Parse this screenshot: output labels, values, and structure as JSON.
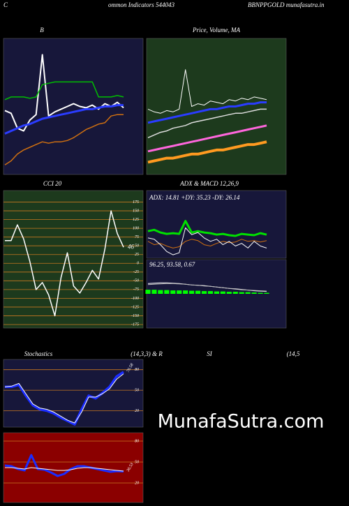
{
  "header": {
    "left": "C",
    "center": "ommon  Indicators 544043",
    "right": "BBNPPGOLD munafasutra.in"
  },
  "watermark": "MunafaSutra.com",
  "chart_data": [
    {
      "type": "line",
      "title": "B",
      "background": "#17173a",
      "ylim": [
        0,
        100
      ],
      "series": [
        {
          "name": "Price",
          "color": "#ffffff",
          "width": 2,
          "values": [
            47,
            45,
            34,
            32,
            40,
            44,
            88,
            43,
            46,
            48,
            50,
            52,
            50,
            49,
            51,
            48,
            52,
            50,
            53,
            49
          ]
        },
        {
          "name": "Upper band",
          "color": "#00c000",
          "width": 1.5,
          "values": [
            55,
            57,
            57,
            57,
            56,
            57,
            66,
            67,
            68,
            68,
            68,
            68,
            68,
            68,
            68,
            57,
            57,
            57,
            58,
            57
          ]
        },
        {
          "name": "Middle band",
          "color": "#2a3cff",
          "width": 3,
          "values": [
            30,
            32,
            34,
            36,
            37,
            39,
            41,
            42,
            43,
            44,
            45,
            46,
            47,
            48,
            48,
            49,
            50,
            50,
            51,
            51
          ]
        },
        {
          "name": "Lower band",
          "color": "#d07010",
          "width": 1.5,
          "values": [
            7,
            10,
            15,
            18,
            20,
            22,
            24,
            23,
            24,
            24,
            25,
            27,
            30,
            33,
            35,
            37,
            38,
            43,
            44,
            44
          ]
        }
      ]
    },
    {
      "type": "line",
      "title": "Price,  Volume,  MA",
      "background": "#1d3a1d",
      "ylim": [
        0,
        100
      ],
      "series": [
        {
          "name": "Price",
          "color": "#ffffff",
          "width": 1,
          "values": [
            48,
            46,
            45,
            47,
            46,
            48,
            77,
            50,
            52,
            51,
            54,
            53,
            52,
            55,
            54,
            56,
            55,
            57,
            56,
            55
          ]
        },
        {
          "name": "MA short",
          "color": "#2a3cff",
          "width": 3,
          "values": [
            38,
            39,
            40,
            41,
            42,
            43,
            44,
            45,
            46,
            47,
            48,
            48,
            49,
            50,
            50,
            51,
            52,
            52,
            53,
            53
          ]
        },
        {
          "name": "MA mid",
          "color": "#dddddd",
          "width": 1.5,
          "values": [
            27,
            29,
            31,
            32,
            34,
            35,
            36,
            38,
            39,
            40,
            41,
            42,
            43,
            44,
            45,
            45,
            46,
            47,
            48,
            48
          ]
        },
        {
          "name": "MA long",
          "color": "#ff66dd",
          "width": 3,
          "values": [
            17,
            18,
            19,
            20,
            21,
            22,
            23,
            24,
            25,
            26,
            27,
            28,
            29,
            30,
            31,
            32,
            33,
            34,
            35,
            36
          ]
        },
        {
          "name": "MA longest",
          "color": "#ff9a20",
          "width": 4,
          "values": [
            9,
            10,
            11,
            12,
            12,
            13,
            14,
            15,
            15,
            16,
            17,
            18,
            18,
            19,
            20,
            21,
            22,
            22,
            23,
            24
          ]
        }
      ]
    },
    {
      "type": "line",
      "title": "CCI 20",
      "background": "#1d3a1d",
      "grid": true,
      "grid_color": "#c87820",
      "ylim": [
        -185,
        208
      ],
      "yticks": [
        175,
        150,
        125,
        100,
        75,
        50,
        25,
        0,
        -25,
        -50,
        -75,
        -100,
        -125,
        -150,
        -175
      ],
      "end_label": true,
      "series": [
        {
          "name": "CCI",
          "color": "#ffffff",
          "width": 1.5,
          "values": [
            65,
            65,
            110,
            70,
            5,
            -75,
            -55,
            -90,
            -150,
            -40,
            30,
            -65,
            -85,
            -55,
            -20,
            -45,
            40,
            150,
            85,
            46
          ]
        }
      ]
    },
    {
      "type": "line",
      "title": "ADX  & MACD 12,26,9",
      "annotation": "ADX: 14.81  +DY: 35.23  -DY: 26.14",
      "background": "#17173a",
      "ylim": [
        0,
        100
      ],
      "series": [
        {
          "name": "+DY",
          "color": "#00e000",
          "width": 3,
          "values": [
            40,
            42,
            38,
            36,
            37,
            36,
            55,
            38,
            40,
            38,
            37,
            35,
            36,
            34,
            33,
            36,
            35,
            34,
            37,
            35
          ]
        },
        {
          "name": "-DY",
          "color": "#d07010",
          "width": 1,
          "values": [
            25,
            20,
            22,
            18,
            15,
            17,
            25,
            28,
            26,
            20,
            18,
            22,
            25,
            23,
            24,
            28,
            25,
            26,
            24,
            26
          ]
        },
        {
          "name": "ADX",
          "color": "#ffffff",
          "width": 1,
          "values": [
            30,
            28,
            20,
            10,
            5,
            8,
            45,
            35,
            38,
            30,
            25,
            28,
            20,
            25,
            18,
            22,
            15,
            25,
            18,
            15
          ]
        }
      ]
    },
    {
      "type": "line",
      "annotation": "96.25,  93.58,  0.67",
      "background": "#17173a",
      "ylim": [
        -100,
        100
      ],
      "series": [
        {
          "name": "Histogram",
          "type": "bar",
          "color": "#00ff00",
          "values": [
            12,
            12,
            11,
            11,
            10,
            10,
            10,
            9,
            9,
            8,
            8,
            7,
            7,
            6,
            6,
            5,
            5,
            4,
            3,
            3
          ]
        },
        {
          "name": "MACD",
          "color": "#ffffff",
          "width": 1,
          "values": [
            30,
            31,
            32,
            32,
            31,
            30,
            28,
            26,
            25,
            24,
            22,
            20,
            18,
            16,
            14,
            12,
            11,
            9,
            8,
            7
          ]
        },
        {
          "name": "Signal",
          "color": "#bbbbbb",
          "width": 1,
          "values": [
            27,
            28,
            29,
            30,
            30,
            29,
            28,
            26,
            25,
            23,
            22,
            20,
            18,
            16,
            15,
            13,
            11,
            10,
            9,
            8
          ]
        }
      ]
    },
    {
      "type": "line",
      "title": "Stochastics",
      "subtitle": "(14,3,3) & R",
      "background": "#17173a",
      "grid": true,
      "grid_color": "#c87820",
      "ylim": [
        -4,
        95
      ],
      "yticks": [
        80,
        50,
        20
      ],
      "end_label": true,
      "series": [
        {
          "name": "%K",
          "color": "#1a2cff",
          "width": 3.5,
          "values": [
            55,
            55,
            58,
            42,
            28,
            22,
            20,
            16,
            10,
            5,
            0,
            22,
            42,
            38,
            46,
            55,
            70,
            76.58
          ]
        },
        {
          "name": "%D",
          "color": "#ffffff",
          "width": 1,
          "values": [
            55,
            56,
            60,
            45,
            30,
            24,
            22,
            18,
            12,
            6,
            2,
            18,
            40,
            40,
            45,
            52,
            66,
            74
          ]
        }
      ]
    },
    {
      "type": "line",
      "title": "SI",
      "subtitle": "(14,5",
      "background": "#8b0000",
      "grid": true,
      "grid_color": "#c87820",
      "ylim": [
        -8,
        92
      ],
      "yticks": [
        80,
        50,
        20
      ],
      "end_label": true,
      "series": [
        {
          "name": "RSI",
          "color": "#1a2cff",
          "width": 3,
          "values": [
            45,
            44,
            40,
            38,
            60,
            40,
            39,
            35,
            30,
            33,
            40,
            44,
            44,
            42,
            40,
            38,
            36,
            37,
            36.53
          ]
        },
        {
          "name": "RSI MA",
          "color": "#ffffff",
          "width": 1,
          "values": [
            42,
            42,
            41,
            40,
            42,
            41,
            40,
            39,
            38,
            38,
            39,
            41,
            42,
            42,
            41,
            40,
            39,
            38,
            37
          ]
        }
      ]
    }
  ]
}
